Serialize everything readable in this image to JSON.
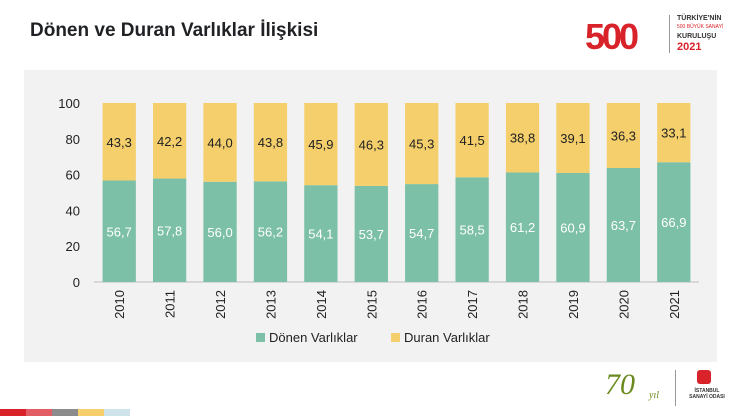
{
  "slide": {
    "title": "Dönen ve Duran Varlıklar İlişkisi"
  },
  "logo_top": {
    "number": "500",
    "line1": "TÜRKİYE'NİN",
    "line2": "500 BÜYÜK SANAYİ",
    "line3": "KURULUŞU",
    "line4": "2021"
  },
  "logo_bottom": {
    "anniversary_number": "70",
    "anniversary_word": "yıl",
    "org_line1": "İSTANBUL",
    "org_line2": "SANAYİ ODASI"
  },
  "colors": {
    "donen": "#7cc0a7",
    "duran": "#f4cf6c",
    "strip": [
      "#d8232a",
      "#e35d65",
      "#8c8c8c",
      "#f4cf6c",
      "#cfe3ea"
    ]
  },
  "chart_data": {
    "type": "bar",
    "stacked": true,
    "categories": [
      "2010",
      "2011",
      "2012",
      "2013",
      "2014",
      "2015",
      "2016",
      "2017",
      "2018",
      "2019",
      "2020",
      "2021"
    ],
    "series": [
      {
        "name": "Dönen Varlıklar",
        "values": [
          56.7,
          57.8,
          56.0,
          56.2,
          54.1,
          53.7,
          54.7,
          58.5,
          61.2,
          60.9,
          63.7,
          66.9
        ],
        "labels": [
          "56,7",
          "57,8",
          "56,0",
          "56,2",
          "54,1",
          "53,7",
          "54,7",
          "58,5",
          "61,2",
          "60,9",
          "63,7",
          "66,9"
        ]
      },
      {
        "name": "Duran Varlıklar",
        "values": [
          43.3,
          42.2,
          44.0,
          43.8,
          45.9,
          46.3,
          45.3,
          41.5,
          38.8,
          39.1,
          36.3,
          33.1
        ],
        "labels": [
          "43,3",
          "42,2",
          "44,0",
          "43,8",
          "45,9",
          "46,3",
          "45,3",
          "41,5",
          "38,8",
          "39,1",
          "36,3",
          "33,1"
        ]
      }
    ],
    "ylim": [
      0,
      100
    ],
    "yticks": [
      "0",
      "20",
      "40",
      "60",
      "80",
      "100"
    ],
    "grid": false,
    "legend_position": "bottom"
  }
}
